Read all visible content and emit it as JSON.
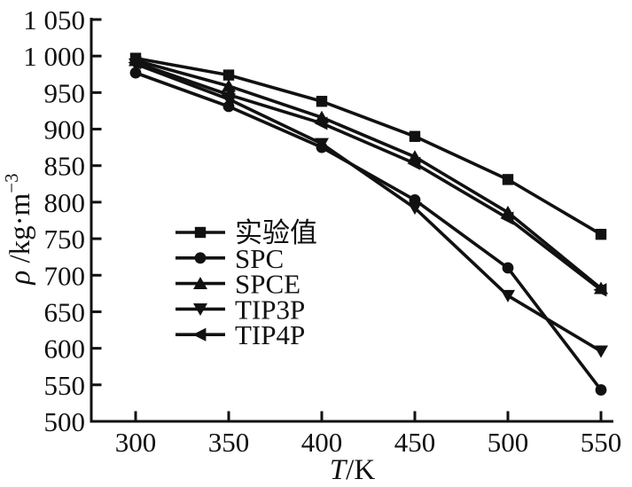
{
  "chart_data": {
    "type": "line",
    "x": [
      300,
      350,
      400,
      450,
      500,
      550
    ],
    "series": [
      {
        "name": "实验值",
        "marker": "square",
        "values": [
          997,
          974,
          938,
          890,
          831,
          756
        ]
      },
      {
        "name": "SPC",
        "marker": "circle",
        "values": [
          977,
          931,
          875,
          803,
          710,
          543
        ]
      },
      {
        "name": "SPCE",
        "marker": "triangle-up",
        "values": [
          994,
          959,
          916,
          862,
          786,
          682
        ]
      },
      {
        "name": "TIP3P",
        "marker": "triangle-down",
        "values": [
          989,
          941,
          880,
          792,
          672,
          596
        ]
      },
      {
        "name": "TIP4P",
        "marker": "triangle-left",
        "values": [
          991,
          947,
          908,
          853,
          778,
          680
        ]
      }
    ],
    "title": "",
    "xlabel": "T/K",
    "ylabel": "ρ/kg·m⁻³",
    "x_axis_label_parts": {
      "symbol": "T",
      "rest": "/K"
    },
    "y_axis_label_parts": {
      "symbol": "ρ",
      "rest": " /kg·m",
      "exponent": "−3"
    },
    "xlim": [
      276,
      557
    ],
    "ylim": [
      500,
      1050
    ],
    "x_ticks": [
      300,
      350,
      400,
      450,
      500,
      550
    ],
    "x_tick_labels": [
      "300",
      "350",
      "400",
      "450",
      "500",
      "550"
    ],
    "y_ticks": [
      500,
      550,
      600,
      650,
      700,
      750,
      800,
      850,
      900,
      950,
      1000,
      1050
    ],
    "y_tick_labels": [
      "500",
      "550",
      "600",
      "650",
      "700",
      "750",
      "800",
      "850",
      "900",
      "950",
      "1 000",
      "1 050"
    ],
    "grid": false,
    "legend_position": "inside-center-left",
    "line_color": "#111111",
    "background": "#ffffff"
  }
}
